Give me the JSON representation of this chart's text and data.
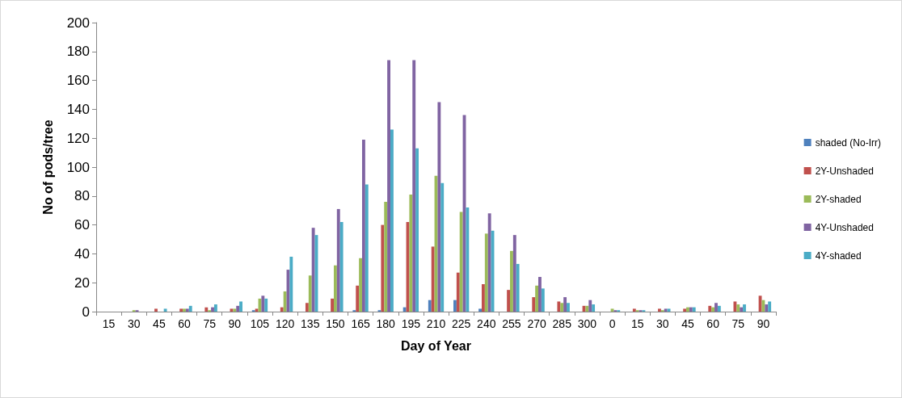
{
  "chart_data": {
    "type": "bar",
    "xlabel": "Day of Year",
    "ylabel": "No of pods/tree",
    "categories": [
      "15",
      "30",
      "45",
      "60",
      "75",
      "90",
      "105",
      "120",
      "135",
      "150",
      "165",
      "180",
      "195",
      "210",
      "225",
      "240",
      "255",
      "270",
      "285",
      "300",
      "0",
      "15",
      "30",
      "45",
      "60",
      "75",
      "90"
    ],
    "series": [
      {
        "name": "shaded (No-Irr)",
        "color": "#4f81bd",
        "values": [
          0,
          0,
          0,
          0,
          0,
          0,
          1,
          0,
          0,
          0,
          1,
          1,
          3,
          8,
          8,
          2,
          0,
          0,
          0,
          0,
          0,
          0,
          0,
          0,
          0,
          0,
          0
        ]
      },
      {
        "name": "2Y-Unshaded",
        "color": "#c0504d",
        "values": [
          0,
          0,
          2,
          2,
          3,
          2,
          2,
          3,
          6,
          9,
          18,
          60,
          62,
          45,
          27,
          19,
          15,
          10,
          7,
          4,
          0,
          2,
          2,
          2,
          4,
          7,
          11
        ]
      },
      {
        "name": "2Y-shaded",
        "color": "#9bbb59",
        "values": [
          0,
          1,
          0,
          2,
          1,
          2,
          9,
          14,
          25,
          32,
          37,
          76,
          81,
          94,
          69,
          54,
          42,
          18,
          6,
          4,
          2,
          1,
          1,
          3,
          3,
          5,
          8
        ]
      },
      {
        "name": "4Y-Unshaded",
        "color": "#8064a2",
        "values": [
          0,
          1,
          0,
          2,
          3,
          4,
          11,
          29,
          58,
          71,
          119,
          174,
          174,
          145,
          136,
          68,
          53,
          24,
          10,
          8,
          1,
          1,
          2,
          3,
          6,
          3,
          5
        ]
      },
      {
        "name": "4Y-shaded",
        "color": "#4bacc6",
        "values": [
          0,
          0,
          2,
          4,
          5,
          7,
          9,
          38,
          53,
          62,
          88,
          126,
          113,
          89,
          72,
          56,
          33,
          16,
          6,
          5,
          1,
          1,
          2,
          3,
          4,
          5,
          7
        ]
      }
    ],
    "ylim": [
      0,
      200
    ],
    "yticks": [
      0,
      20,
      40,
      60,
      80,
      100,
      120,
      140,
      160,
      180,
      200
    ],
    "grid": false,
    "legend": "right"
  }
}
